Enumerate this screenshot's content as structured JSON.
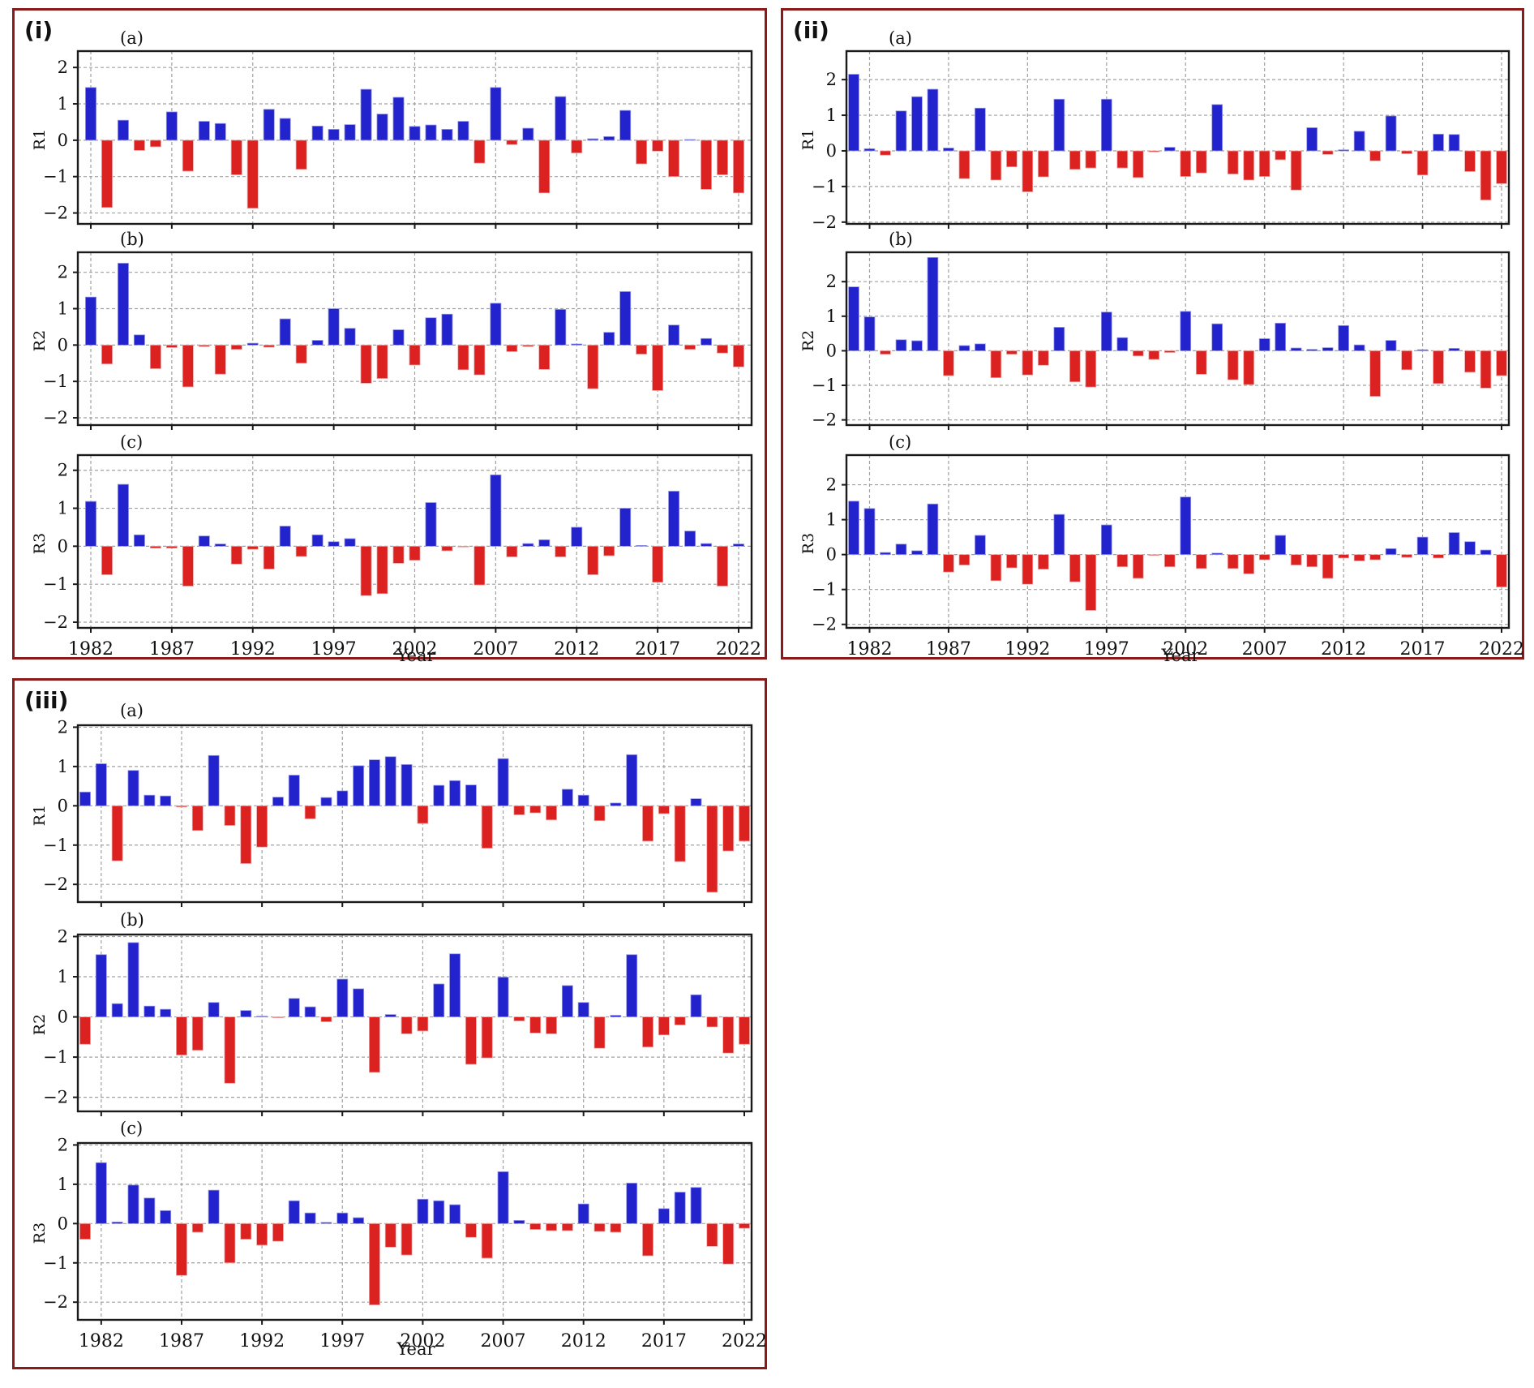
{
  "figure": {
    "background": "#ffffff",
    "frame_color": "#8b1a1a"
  },
  "colors": {
    "positive_bar": "#2323cd",
    "negative_bar": "#dc2121",
    "grid": "#a0a0a0",
    "axis": "#1a1a1a"
  },
  "chart_data": [
    {
      "id": "i",
      "type": "bar",
      "label": "(i)",
      "xlabel": "Year",
      "start_year": 1982,
      "xticks": [
        1982,
        1987,
        1992,
        1997,
        2002,
        2007,
        2012,
        2017,
        2022
      ],
      "legend": "blue = positive anomaly, red = negative anomaly",
      "subplots": [
        {
          "label": "(a)",
          "ylabel": "R1",
          "ylim": [
            -2.3,
            2.45
          ],
          "yticks": [
            -2,
            -1,
            0,
            1,
            2
          ],
          "values": [
            1.45,
            -1.85,
            0.55,
            -0.28,
            -0.18,
            0.78,
            -0.85,
            0.52,
            0.46,
            -0.95,
            -1.87,
            0.85,
            0.6,
            -0.8,
            0.39,
            0.3,
            0.43,
            1.4,
            0.72,
            1.18,
            0.38,
            0.42,
            0.3,
            0.52,
            -0.63,
            1.45,
            -0.12,
            0.33,
            -1.45,
            1.2,
            -0.35,
            0.04,
            0.1,
            0.82,
            -0.65,
            -0.3,
            -1.0,
            0.02,
            -1.35,
            -0.95,
            -1.45
          ]
        },
        {
          "label": "(b)",
          "ylabel": "R2",
          "ylim": [
            -2.2,
            2.55
          ],
          "yticks": [
            -2,
            -1,
            0,
            1,
            2
          ],
          "values": [
            1.32,
            -0.52,
            2.25,
            0.28,
            -0.65,
            -0.07,
            -1.15,
            -0.04,
            -0.8,
            -0.12,
            0.05,
            -0.06,
            0.72,
            -0.5,
            0.13,
            1.0,
            0.46,
            -1.05,
            -0.92,
            0.42,
            -0.55,
            0.75,
            0.85,
            -0.68,
            -0.82,
            1.15,
            -0.18,
            -0.04,
            -0.67,
            0.98,
            0.03,
            -1.2,
            0.35,
            1.47,
            -0.25,
            -1.25,
            0.55,
            -0.12,
            0.18,
            -0.22,
            -0.6
          ]
        },
        {
          "label": "(c)",
          "ylabel": "R3",
          "ylim": [
            -2.15,
            2.4
          ],
          "yticks": [
            -2,
            -1,
            0,
            1,
            2
          ],
          "values": [
            1.18,
            -0.75,
            1.63,
            0.3,
            -0.05,
            -0.05,
            -1.05,
            0.27,
            0.06,
            -0.47,
            -0.08,
            -0.6,
            0.53,
            -0.27,
            0.3,
            0.12,
            0.2,
            -1.3,
            -1.25,
            -0.45,
            -0.37,
            1.15,
            -0.12,
            -0.02,
            -1.02,
            1.88,
            -0.28,
            0.07,
            0.17,
            -0.28,
            0.5,
            -0.75,
            -0.25,
            1.0,
            0.02,
            -0.95,
            1.45,
            0.4,
            0.07,
            -1.05,
            0.06
          ]
        }
      ]
    },
    {
      "id": "ii",
      "type": "bar",
      "label": "(ii)",
      "xlabel": "Year",
      "start_year": 1981,
      "xticks": [
        1982,
        1987,
        1992,
        1997,
        2002,
        2007,
        2012,
        2017,
        2022
      ],
      "legend": "blue = positive anomaly, red = negative anomaly",
      "subplots": [
        {
          "label": "(a)",
          "ylabel": "R1",
          "ylim": [
            -2.05,
            2.8
          ],
          "yticks": [
            -2,
            -1,
            0,
            1,
            2
          ],
          "values": [
            2.15,
            0.06,
            -0.12,
            1.12,
            1.52,
            1.73,
            0.08,
            -0.78,
            1.2,
            -0.82,
            -0.45,
            -1.15,
            -0.73,
            1.45,
            -0.52,
            -0.48,
            1.45,
            -0.48,
            -0.75,
            -0.03,
            0.1,
            -0.72,
            -0.62,
            1.3,
            -0.65,
            -0.82,
            -0.72,
            -0.25,
            -1.1,
            0.65,
            -0.1,
            0.03,
            0.55,
            -0.28,
            0.98,
            -0.08,
            -0.68,
            0.47,
            0.46,
            -0.58,
            -1.38,
            -0.92
          ]
        },
        {
          "label": "(b)",
          "ylabel": "R2",
          "ylim": [
            -2.15,
            2.85
          ],
          "yticks": [
            -2,
            -1,
            0,
            1,
            2
          ],
          "values": [
            1.85,
            0.98,
            -0.1,
            0.32,
            0.29,
            2.7,
            -0.72,
            0.15,
            0.2,
            -0.78,
            -0.1,
            -0.7,
            -0.42,
            0.68,
            -0.9,
            -1.05,
            1.12,
            0.38,
            -0.15,
            -0.25,
            -0.05,
            1.14,
            -0.68,
            0.78,
            -0.84,
            -0.98,
            0.35,
            0.8,
            0.08,
            0.04,
            0.09,
            0.73,
            0.17,
            -1.32,
            0.3,
            -0.55,
            0.03,
            -0.95,
            0.07,
            -0.62,
            -1.08,
            -0.72
          ]
        },
        {
          "label": "(c)",
          "ylabel": "R3",
          "ylim": [
            -2.1,
            2.85
          ],
          "yticks": [
            -2,
            -1,
            0,
            1,
            2
          ],
          "values": [
            1.53,
            1.32,
            0.06,
            0.3,
            0.11,
            1.45,
            -0.5,
            -0.3,
            0.55,
            -0.75,
            -0.38,
            -0.85,
            -0.42,
            1.15,
            -0.78,
            -1.6,
            0.85,
            -0.35,
            -0.68,
            -0.02,
            -0.35,
            1.65,
            -0.4,
            0.04,
            -0.4,
            -0.55,
            -0.15,
            0.55,
            -0.3,
            -0.35,
            -0.68,
            -0.1,
            -0.18,
            -0.15,
            0.17,
            -0.08,
            0.5,
            -0.1,
            0.63,
            0.37,
            0.13,
            -0.93
          ]
        }
      ]
    },
    {
      "id": "iii",
      "type": "bar",
      "label": "(iii)",
      "xlabel": "Year",
      "start_year": 1981,
      "xticks": [
        1982,
        1987,
        1992,
        1997,
        2002,
        2007,
        2012,
        2017,
        2022
      ],
      "legend": "blue = positive anomaly, red = negative anomaly",
      "subplots": [
        {
          "label": "(a)",
          "ylabel": "R1",
          "ylim": [
            -2.45,
            2.05
          ],
          "yticks": [
            -2,
            -1,
            0,
            1,
            2
          ],
          "values": [
            0.35,
            1.07,
            -1.4,
            0.9,
            0.27,
            0.25,
            -0.03,
            -0.63,
            1.28,
            -0.5,
            -1.47,
            -1.05,
            0.22,
            0.78,
            -0.33,
            0.21,
            0.38,
            1.02,
            1.17,
            1.25,
            1.05,
            -0.45,
            0.52,
            0.64,
            0.53,
            -1.08,
            1.2,
            -0.23,
            -0.18,
            -0.36,
            0.42,
            0.27,
            -0.38,
            0.07,
            1.3,
            -0.9,
            -0.2,
            -1.42,
            0.18,
            -2.2,
            -1.15,
            -0.9
          ]
        },
        {
          "label": "(b)",
          "ylabel": "R2",
          "ylim": [
            -2.35,
            2.05
          ],
          "yticks": [
            -2,
            -1,
            0,
            1,
            2
          ],
          "values": [
            -0.68,
            1.55,
            0.33,
            1.85,
            0.27,
            0.19,
            -0.95,
            -0.83,
            0.36,
            -1.65,
            0.16,
            0.02,
            -0.02,
            0.46,
            0.25,
            -0.12,
            0.94,
            0.7,
            -1.38,
            0.06,
            -0.42,
            -0.35,
            0.82,
            1.57,
            -1.18,
            -1.02,
            0.99,
            -0.1,
            -0.4,
            -0.42,
            0.78,
            0.36,
            -0.78,
            0.04,
            1.55,
            -0.75,
            -0.45,
            -0.2,
            0.55,
            -0.25,
            -0.9,
            -0.68
          ]
        },
        {
          "label": "(c)",
          "ylabel": "R3",
          "ylim": [
            -2.45,
            2.05
          ],
          "yticks": [
            -2,
            -1,
            0,
            1,
            2
          ],
          "values": [
            -0.4,
            1.55,
            0.04,
            0.98,
            0.65,
            0.33,
            -1.32,
            -0.22,
            0.85,
            -1.0,
            -0.4,
            -0.55,
            -0.45,
            0.58,
            0.27,
            0.03,
            0.27,
            0.15,
            -2.07,
            -0.6,
            -0.8,
            0.62,
            0.58,
            0.48,
            -0.35,
            -0.88,
            1.32,
            0.08,
            -0.15,
            -0.18,
            -0.18,
            0.5,
            -0.2,
            -0.22,
            1.03,
            -0.82,
            0.38,
            0.8,
            0.92,
            -0.58,
            -1.03,
            -0.12
          ]
        }
      ]
    }
  ]
}
